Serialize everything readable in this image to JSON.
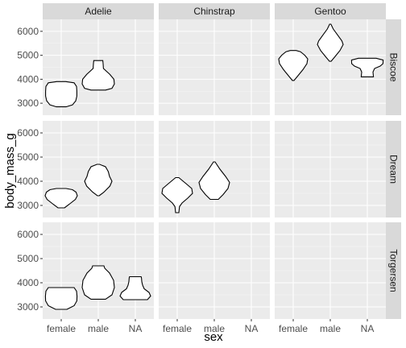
{
  "chart_data": {
    "type": "violin",
    "xlabel": "sex",
    "ylabel": "body_mass_g",
    "x_categories": [
      "female",
      "male",
      "NA"
    ],
    "y_ticks": [
      3000,
      4000,
      5000,
      6000
    ],
    "ylim": [
      2500,
      6500
    ],
    "grid": true,
    "facet_columns": [
      "Adelie",
      "Chinstrap",
      "Gentoo"
    ],
    "facet_rows": [
      "Biscoe",
      "Dream",
      "Torgersen"
    ],
    "panels": [
      {
        "species": "Adelie",
        "island": "Biscoe",
        "violins": [
          {
            "sex": "female",
            "min": 2850,
            "max": 3900,
            "profile": [
              [
                2850,
                0.3
              ],
              [
                2930,
                0.7
              ],
              [
                3100,
                0.9
              ],
              [
                3300,
                0.97
              ],
              [
                3500,
                0.97
              ],
              [
                3700,
                0.95
              ],
              [
                3850,
                0.8
              ],
              [
                3900,
                0.28
              ]
            ]
          },
          {
            "sex": "male",
            "min": 3550,
            "max": 4780,
            "profile": [
              [
                3550,
                0.45
              ],
              [
                3620,
                0.85
              ],
              [
                3800,
                1.0
              ],
              [
                4000,
                0.97
              ],
              [
                4200,
                0.72
              ],
              [
                4450,
                0.32
              ],
              [
                4650,
                0.3
              ],
              [
                4780,
                0.28
              ]
            ]
          }
        ]
      },
      {
        "species": "Chinstrap",
        "island": "Biscoe",
        "violins": []
      },
      {
        "species": "Gentoo",
        "island": "Biscoe",
        "violins": [
          {
            "sex": "female",
            "min": 3950,
            "max": 5200,
            "profile": [
              [
                3950,
                0.05
              ],
              [
                4150,
                0.3
              ],
              [
                4400,
                0.6
              ],
              [
                4650,
                0.85
              ],
              [
                4850,
                0.9
              ],
              [
                5000,
                0.72
              ],
              [
                5150,
                0.45
              ],
              [
                5200,
                0.18
              ]
            ]
          },
          {
            "sex": "male",
            "min": 4750,
            "max": 6300,
            "profile": [
              [
                4750,
                0.05
              ],
              [
                4950,
                0.3
              ],
              [
                5200,
                0.6
              ],
              [
                5450,
                0.8
              ],
              [
                5600,
                0.72
              ],
              [
                5850,
                0.45
              ],
              [
                6100,
                0.18
              ],
              [
                6300,
                0.04
              ]
            ]
          },
          {
            "sex": "NA",
            "min": 4100,
            "max": 4875,
            "profile": [
              [
                4100,
                0.38
              ],
              [
                4300,
                0.35
              ],
              [
                4450,
                0.45
              ],
              [
                4550,
                0.8
              ],
              [
                4650,
                0.97
              ],
              [
                4800,
                0.98
              ],
              [
                4875,
                0.55
              ]
            ]
          }
        ]
      },
      {
        "species": "Adelie",
        "island": "Dream",
        "violins": [
          {
            "sex": "female",
            "min": 2900,
            "max": 3700,
            "profile": [
              [
                2900,
                0.2
              ],
              [
                3050,
                0.5
              ],
              [
                3250,
                0.88
              ],
              [
                3400,
                1.0
              ],
              [
                3550,
                0.92
              ],
              [
                3650,
                0.7
              ],
              [
                3700,
                0.3
              ]
            ]
          },
          {
            "sex": "male",
            "min": 3400,
            "max": 4700,
            "profile": [
              [
                3400,
                0.05
              ],
              [
                3550,
                0.35
              ],
              [
                3800,
                0.72
              ],
              [
                4000,
                0.85
              ],
              [
                4200,
                0.7
              ],
              [
                4400,
                0.62
              ],
              [
                4600,
                0.45
              ],
              [
                4700,
                0.08
              ]
            ]
          }
        ]
      },
      {
        "species": "Chinstrap",
        "island": "Dream",
        "violins": [
          {
            "sex": "female",
            "min": 2700,
            "max": 4150,
            "profile": [
              [
                2700,
                0.1
              ],
              [
                2950,
                0.14
              ],
              [
                3100,
                0.3
              ],
              [
                3300,
                0.65
              ],
              [
                3500,
                0.95
              ],
              [
                3700,
                0.9
              ],
              [
                3900,
                0.55
              ],
              [
                4150,
                0.1
              ]
            ]
          },
          {
            "sex": "male",
            "min": 3250,
            "max": 4800,
            "profile": [
              [
                3250,
                0.25
              ],
              [
                3450,
                0.55
              ],
              [
                3700,
                0.85
              ],
              [
                3950,
                0.95
              ],
              [
                4200,
                0.7
              ],
              [
                4500,
                0.35
              ],
              [
                4800,
                0.05
              ]
            ]
          }
        ]
      },
      {
        "species": "Gentoo",
        "island": "Dream",
        "violins": []
      },
      {
        "species": "Adelie",
        "island": "Torgersen",
        "violins": [
          {
            "sex": "female",
            "min": 2900,
            "max": 3800,
            "profile": [
              [
                2900,
                0.35
              ],
              [
                3050,
                0.8
              ],
              [
                3250,
                0.97
              ],
              [
                3450,
                0.98
              ],
              [
                3650,
                0.95
              ],
              [
                3800,
                0.8
              ]
            ]
          },
          {
            "sex": "male",
            "min": 3320,
            "max": 4700,
            "profile": [
              [
                3320,
                0.45
              ],
              [
                3500,
                0.85
              ],
              [
                3800,
                1.0
              ],
              [
                4100,
                0.95
              ],
              [
                4400,
                0.7
              ],
              [
                4600,
                0.4
              ],
              [
                4700,
                0.35
              ]
            ]
          },
          {
            "sex": "NA",
            "min": 3300,
            "max": 4250,
            "profile": [
              [
                3300,
                0.75
              ],
              [
                3450,
                0.95
              ],
              [
                3600,
                0.85
              ],
              [
                3750,
                0.55
              ],
              [
                3900,
                0.45
              ],
              [
                4050,
                0.4
              ],
              [
                4200,
                0.38
              ],
              [
                4250,
                0.36
              ]
            ]
          }
        ]
      },
      {
        "species": "Chinstrap",
        "island": "Torgersen",
        "violins": []
      },
      {
        "species": "Gentoo",
        "island": "Torgersen",
        "violins": []
      }
    ]
  }
}
